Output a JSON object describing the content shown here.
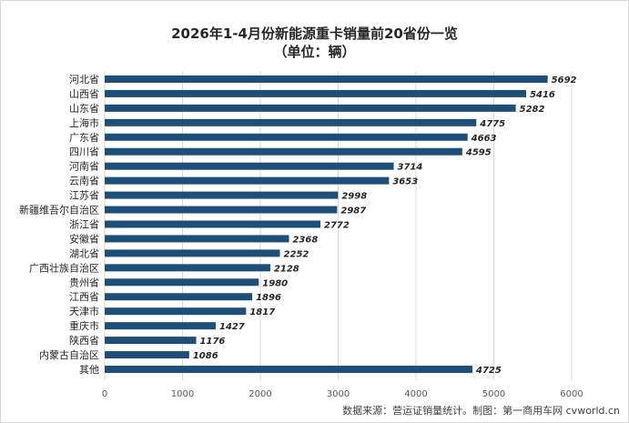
{
  "chart_data": {
    "type": "bar",
    "orientation": "horizontal",
    "title": "2026年1-4月份新能源重卡销量前20省份一览",
    "subtitle": "（单位：辆）",
    "categories": [
      "河北省",
      "山西省",
      "山东省",
      "上海市",
      "广东省",
      "四川省",
      "河南省",
      "云南省",
      "江苏省",
      "新疆维吾尔自治区",
      "浙江省",
      "安徽省",
      "湖北省",
      "广西壮族自治区",
      "贵州省",
      "江西省",
      "天津市",
      "重庆市",
      "陕西省",
      "内蒙古自治区",
      "其他"
    ],
    "values": [
      5692,
      5416,
      5282,
      4775,
      4663,
      4595,
      3714,
      3653,
      2998,
      2987,
      2772,
      2368,
      2252,
      2128,
      1980,
      1896,
      1817,
      1427,
      1176,
      1086,
      4725
    ],
    "xlim": [
      0,
      6000
    ],
    "xticks": [
      "0",
      "1000",
      "2000",
      "3000",
      "4000",
      "5000",
      "6000"
    ],
    "grid": "vertical",
    "bar_color": "#1f4e79",
    "source_note": "数据来源：营运证销量统计。制图：第一商用车网 cvworld.cn"
  }
}
